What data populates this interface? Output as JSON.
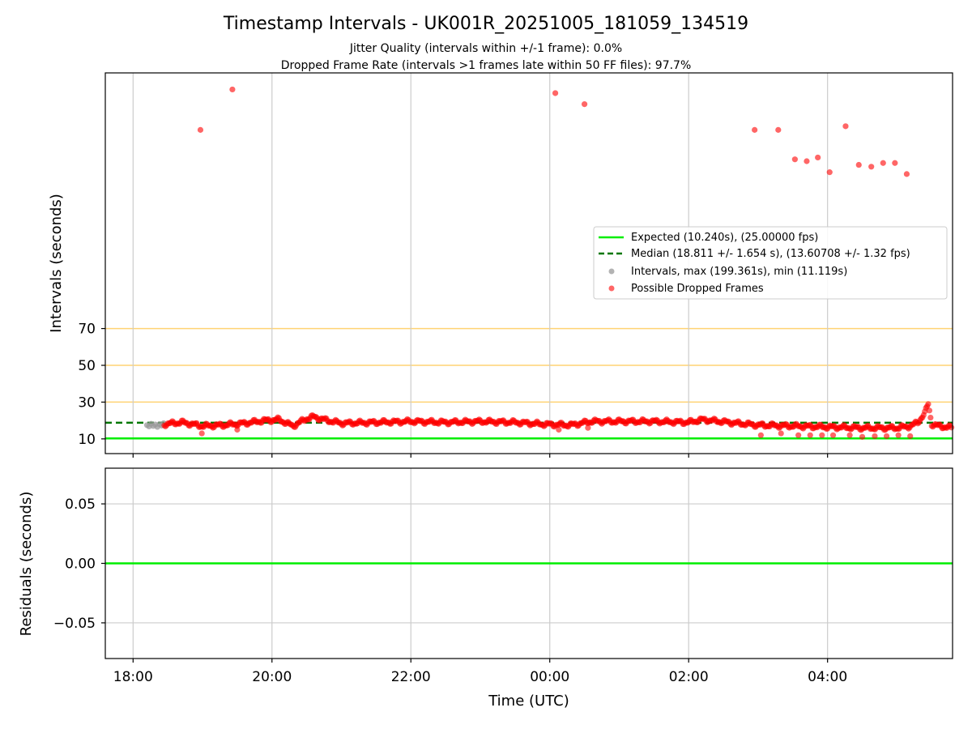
{
  "chart_data": {
    "type": "scatter",
    "title": "Timestamp Intervals - UK001R_20251005_181059_134519",
    "subtitle_lines": [
      "Jitter Quality (intervals within +/-1 frame): 0.0%",
      "Dropped Frame Rate (intervals >1 frames late within 50 FF files): 97.7%"
    ],
    "xlabel": "Time (UTC)",
    "x_units": "hours since 18:00 UTC",
    "xlim": [
      -0.4,
      11.8
    ],
    "x_ticks": [
      0,
      2,
      4,
      6,
      8,
      10
    ],
    "x_tick_labels": [
      "18:00",
      "20:00",
      "22:00",
      "00:00",
      "02:00",
      "04:00"
    ],
    "top_panel": {
      "ylabel": "Intervals (seconds)",
      "ylim": [
        2,
        209
      ],
      "y_ticks": [
        10,
        30,
        50,
        70
      ],
      "y_tick_labels": [
        "10",
        "30",
        "50",
        "70"
      ],
      "reference_lines": [
        30,
        50,
        70
      ],
      "expected_value": 10.24,
      "median_value": 18.811,
      "legend": {
        "position": "center-right",
        "entries": [
          "Expected (10.240s), (25.00000 fps)",
          "Median (18.811 +/- 1.654 s), (13.60708 +/- 1.32 fps)",
          "Intervals, max (199.361s), min (11.119s)",
          "Possible Dropped Frames"
        ]
      },
      "normal_intervals": {
        "name": "Intervals",
        "x": [
          0.2,
          0.23,
          0.26,
          0.29,
          0.32,
          0.35,
          0.38,
          0.41,
          0.44
        ],
        "y": [
          17.5,
          16.8,
          18.2,
          17.0,
          17.8,
          16.5,
          18.0,
          17.2,
          18.5
        ]
      },
      "dropped_frames_outliers": {
        "name": "Possible Dropped Frames",
        "x": [
          0.97,
          1.43,
          6.08,
          6.5,
          8.95,
          9.29,
          9.53,
          9.7,
          9.86,
          10.03,
          10.26,
          10.45,
          10.63,
          10.8,
          10.97,
          11.14,
          0.99,
          1.5,
          6.13,
          6.55,
          9.04,
          9.33,
          9.58,
          9.75,
          9.92,
          10.08,
          10.32,
          10.5,
          10.68,
          10.85,
          11.02,
          11.19
        ],
        "y": [
          178,
          200,
          198,
          192,
          178,
          178,
          162,
          161,
          163,
          155,
          180,
          159,
          158,
          160,
          160,
          154,
          13,
          15,
          15,
          16,
          12,
          13,
          12,
          12,
          12,
          12,
          12,
          11.1,
          11.5,
          11.5,
          12,
          11.5
        ]
      },
      "dropped_frames_trend": {
        "name": "Possible Dropped Frames (dense)",
        "x": [
          0.45,
          0.7,
          1.0,
          1.3,
          1.6,
          1.9,
          2.1,
          2.3,
          2.5,
          2.6,
          2.8,
          3.0,
          3.5,
          4.0,
          4.5,
          5.0,
          5.5,
          5.9,
          6.3,
          6.6,
          7.0,
          7.5,
          8.0,
          8.2,
          8.45,
          8.7,
          9.0,
          9.5,
          10.0,
          10.5,
          11.0,
          11.2,
          11.3,
          11.4,
          11.45,
          11.5,
          11.6,
          11.8
        ],
        "y": [
          18,
          19,
          17,
          17.5,
          18.5,
          20,
          20.5,
          17,
          21,
          22,
          20,
          18.5,
          19,
          19.5,
          19,
          19.5,
          19,
          18,
          17.5,
          19.5,
          19.5,
          19.5,
          19,
          20.5,
          19.5,
          18.5,
          17.5,
          17,
          16.5,
          16,
          16,
          17,
          19,
          24,
          29,
          18,
          17,
          16
        ]
      }
    },
    "residuals_panel": {
      "ylabel": "Residuals (seconds)",
      "ylim": [
        -0.08,
        0.08
      ],
      "y_ticks": [
        0.05,
        0.0,
        -0.05
      ],
      "y_tick_labels": [
        "0.05",
        "0.00",
        "−0.05"
      ],
      "residual_line_value": 0.0
    },
    "colors": {
      "expected": "#00ee00",
      "median": "#007700",
      "intervals": "#999999",
      "dropped": "#ff0000",
      "reference": "#ffd373",
      "grid": "#cccccc"
    }
  }
}
